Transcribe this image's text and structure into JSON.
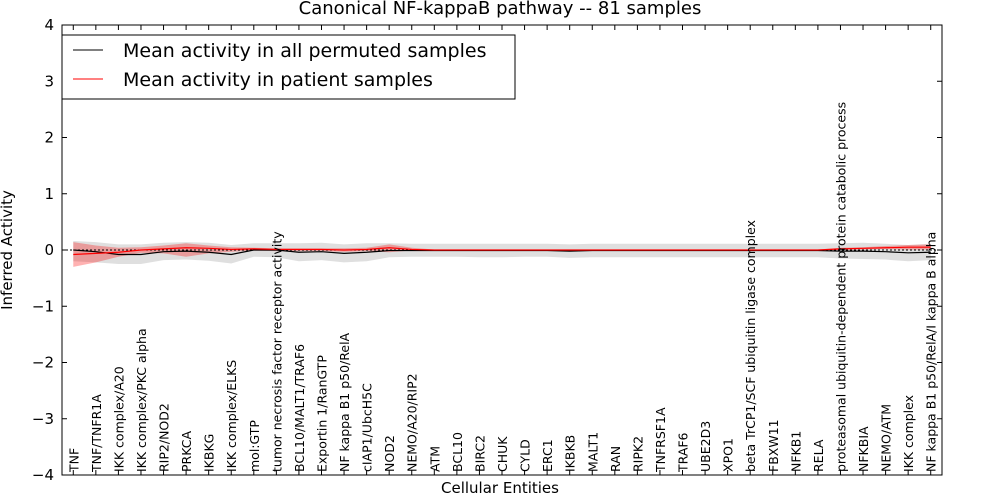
{
  "chart_data": {
    "type": "line",
    "title": "Canonical NF-kappaB pathway -- 81 samples",
    "xlabel": "Cellular Entities",
    "ylabel": "Inferred Activity",
    "ylim": [
      -4,
      4
    ],
    "yticks": [
      4,
      3,
      2,
      1,
      0,
      -1,
      -2,
      -3,
      -4
    ],
    "ytick_labels": [
      "4",
      "3",
      "2",
      "1",
      "0",
      "−1",
      "−2",
      "−3",
      "−4"
    ],
    "categories": [
      "TNF",
      "TNF/TNFR1A",
      "IKK complex/A20",
      "IKK complex/PKC alpha",
      "RIP2/NOD2",
      "PRKCA",
      "IKBKG",
      "IKK complex/ELKS",
      "mol:GTP",
      "tumor necrosis factor receptor activity",
      "BCL10/MALT1/TRAF6",
      "Exportin 1/RanGTP",
      "NF kappa B1 p50/RelA",
      "cIAP1/UbcH5C",
      "NOD2",
      "NEMO/A20/RIP2",
      "ATM",
      "BCL10",
      "BIRC2",
      "CHUK",
      "CYLD",
      "ERC1",
      "IKBKB",
      "MALT1",
      "RAN",
      "RIPK2",
      "TNFRSF1A",
      "TRAF6",
      "UBE2D3",
      "XPO1",
      "beta TrCP1/SCF ubiquitin ligase complex",
      "FBXW11",
      "NFKB1",
      "RELA",
      "proteasomal ubiquitin-dependent protein catabolic process",
      "NFKBIA",
      "NEMO/ATM",
      "IKK complex",
      "NF kappa B1 p50/RelA/I kappa B alpha"
    ],
    "series": [
      {
        "name": "Mean activity in all permuted samples",
        "color": "#000000",
        "values": [
          0.0,
          -0.03,
          -0.08,
          -0.08,
          -0.03,
          -0.02,
          -0.04,
          -0.08,
          0.0,
          0.0,
          -0.04,
          -0.03,
          -0.06,
          -0.04,
          -0.01,
          -0.01,
          -0.01,
          -0.01,
          -0.01,
          -0.01,
          -0.01,
          -0.01,
          -0.02,
          -0.01,
          -0.01,
          -0.01,
          -0.01,
          -0.01,
          -0.01,
          -0.01,
          -0.01,
          -0.01,
          -0.01,
          -0.01,
          -0.02,
          -0.02,
          -0.03,
          -0.05,
          -0.04
        ],
        "band_lower": [
          -0.2,
          -0.22,
          -0.25,
          -0.25,
          -0.18,
          -0.17,
          -0.19,
          -0.24,
          -0.12,
          -0.13,
          -0.2,
          -0.18,
          -0.22,
          -0.2,
          -0.13,
          -0.12,
          -0.12,
          -0.12,
          -0.13,
          -0.13,
          -0.12,
          -0.12,
          -0.14,
          -0.13,
          -0.13,
          -0.13,
          -0.13,
          -0.13,
          -0.13,
          -0.13,
          -0.13,
          -0.13,
          -0.13,
          -0.13,
          -0.15,
          -0.16,
          -0.17,
          -0.2,
          -0.18
        ],
        "band_upper": [
          0.16,
          0.14,
          0.1,
          0.1,
          0.13,
          0.14,
          0.13,
          0.09,
          0.12,
          0.12,
          0.12,
          0.13,
          0.1,
          0.12,
          0.12,
          0.11,
          0.11,
          0.11,
          0.11,
          0.11,
          0.11,
          0.11,
          0.1,
          0.11,
          0.11,
          0.11,
          0.11,
          0.11,
          0.11,
          0.11,
          0.11,
          0.11,
          0.11,
          0.11,
          0.12,
          0.13,
          0.11,
          0.09,
          0.11
        ]
      },
      {
        "name": "Mean activity in patient samples",
        "color": "#ff0000",
        "values": [
          -0.08,
          -0.06,
          -0.04,
          0.0,
          0.02,
          0.04,
          0.03,
          0.01,
          0.02,
          0.01,
          0.01,
          0.01,
          0.0,
          0.01,
          0.04,
          0.01,
          0.0,
          0.0,
          0.0,
          0.0,
          0.0,
          0.0,
          0.0,
          0.0,
          0.0,
          0.0,
          0.0,
          0.0,
          0.0,
          0.0,
          0.0,
          0.0,
          0.0,
          0.0,
          0.02,
          0.03,
          0.04,
          0.05,
          0.05
        ],
        "band_lower": [
          -0.3,
          -0.22,
          -0.12,
          -0.05,
          -0.06,
          -0.12,
          -0.06,
          -0.03,
          -0.01,
          -0.02,
          -0.02,
          -0.02,
          -0.03,
          -0.02,
          -0.04,
          -0.01,
          -0.01,
          -0.01,
          -0.01,
          -0.01,
          -0.01,
          -0.01,
          -0.01,
          -0.01,
          -0.01,
          -0.01,
          -0.01,
          -0.01,
          -0.01,
          -0.01,
          -0.01,
          -0.01,
          -0.01,
          -0.01,
          0.0,
          0.01,
          0.02,
          0.01,
          0.01
        ],
        "band_upper": [
          0.14,
          0.08,
          0.04,
          0.05,
          0.08,
          0.12,
          0.08,
          0.05,
          0.04,
          0.03,
          0.03,
          0.03,
          0.03,
          0.04,
          0.1,
          0.04,
          0.01,
          0.01,
          0.01,
          0.01,
          0.01,
          0.01,
          0.01,
          0.01,
          0.01,
          0.01,
          0.01,
          0.01,
          0.01,
          0.01,
          0.01,
          0.01,
          0.01,
          0.01,
          0.04,
          0.05,
          0.07,
          0.09,
          0.1
        ]
      }
    ],
    "reference_line": 0,
    "legend_location": "top-left"
  }
}
